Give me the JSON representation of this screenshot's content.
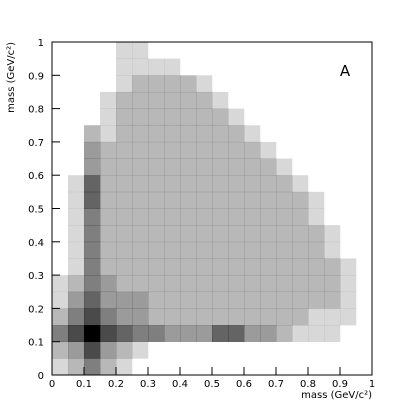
{
  "chart_data": {
    "type": "heatmap",
    "x_label": "mass (GeV/c²)",
    "y_label": "mass (GeV/c²)",
    "annotation": "A",
    "color": "#000000",
    "xlim": [
      0,
      1
    ],
    "ylim": [
      0,
      1
    ],
    "xticks": [
      0,
      0.1,
      0.2,
      0.3,
      0.4,
      0.5,
      0.6,
      0.7,
      0.8,
      0.9,
      1
    ],
    "yticks": [
      0,
      0.1,
      0.2,
      0.3,
      0.4,
      0.5,
      0.6,
      0.7,
      0.8,
      0.9,
      1
    ],
    "xbins": [
      0,
      0.05,
      0.1,
      0.15,
      0.2,
      0.25,
      0.3,
      0.35,
      0.4,
      0.45,
      0.5,
      0.55,
      0.6,
      0.65,
      0.7,
      0.75,
      0.8,
      0.85,
      0.9,
      0.95,
      1
    ],
    "ybins": [
      0,
      0.05,
      0.1,
      0.15,
      0.2,
      0.25,
      0.3,
      0.35,
      0.4,
      0.45,
      0.5,
      0.55,
      0.6,
      0.65,
      0.7,
      0.75,
      0.8,
      0.85,
      0.9,
      0.95,
      1
    ],
    "values": [
      [
        1,
        2,
        4,
        2,
        1,
        0,
        0,
        0,
        0,
        0,
        0,
        0,
        0,
        0,
        0,
        0,
        0,
        0,
        0,
        0
      ],
      [
        2,
        3,
        6,
        3,
        2,
        1,
        0,
        0,
        0,
        0,
        0,
        0,
        0,
        0,
        0,
        0,
        0,
        0,
        0,
        0
      ],
      [
        4,
        6,
        9,
        6,
        5,
        4,
        4,
        3,
        3,
        3,
        5,
        5,
        3,
        3,
        2,
        1,
        1,
        1,
        0,
        0
      ],
      [
        2,
        4,
        6,
        4,
        3,
        3,
        2,
        2,
        2,
        2,
        2,
        2,
        2,
        2,
        2,
        2,
        1,
        1,
        1,
        0
      ],
      [
        1,
        3,
        5,
        3,
        3,
        3,
        2,
        2,
        2,
        2,
        2,
        2,
        2,
        2,
        2,
        2,
        2,
        2,
        1,
        0
      ],
      [
        1,
        2,
        4,
        3,
        2,
        2,
        2,
        2,
        2,
        2,
        2,
        2,
        2,
        2,
        2,
        2,
        2,
        2,
        1,
        0
      ],
      [
        0,
        1,
        4,
        2,
        2,
        2,
        2,
        2,
        2,
        2,
        2,
        2,
        2,
        2,
        2,
        2,
        2,
        2,
        1,
        0
      ],
      [
        0,
        1,
        4,
        2,
        2,
        2,
        2,
        2,
        2,
        2,
        2,
        2,
        2,
        2,
        2,
        2,
        2,
        1,
        0,
        0
      ],
      [
        0,
        1,
        4,
        2,
        2,
        2,
        2,
        2,
        2,
        2,
        2,
        2,
        2,
        2,
        2,
        2,
        2,
        1,
        0,
        0
      ],
      [
        0,
        1,
        4,
        2,
        2,
        2,
        2,
        2,
        2,
        2,
        2,
        2,
        2,
        2,
        2,
        2,
        1,
        0,
        0,
        0
      ],
      [
        0,
        1,
        5,
        2,
        2,
        2,
        2,
        2,
        2,
        2,
        2,
        2,
        2,
        2,
        2,
        2,
        1,
        0,
        0,
        0
      ],
      [
        0,
        1,
        5,
        2,
        2,
        2,
        2,
        2,
        2,
        2,
        2,
        2,
        2,
        2,
        2,
        1,
        0,
        0,
        0,
        0
      ],
      [
        0,
        0,
        3,
        2,
        2,
        2,
        2,
        2,
        2,
        2,
        2,
        2,
        2,
        2,
        1,
        0,
        0,
        0,
        0,
        0
      ],
      [
        0,
        0,
        3,
        2,
        2,
        2,
        2,
        2,
        2,
        2,
        2,
        2,
        2,
        1,
        0,
        0,
        0,
        0,
        0,
        0
      ],
      [
        0,
        0,
        2,
        1,
        2,
        2,
        2,
        2,
        2,
        2,
        2,
        2,
        1,
        0,
        0,
        0,
        0,
        0,
        0,
        0
      ],
      [
        0,
        0,
        0,
        1,
        2,
        2,
        2,
        2,
        2,
        2,
        2,
        1,
        0,
        0,
        0,
        0,
        0,
        0,
        0,
        0
      ],
      [
        0,
        0,
        0,
        1,
        2,
        2,
        2,
        2,
        2,
        2,
        1,
        0,
        0,
        0,
        0,
        0,
        0,
        0,
        0,
        0
      ],
      [
        0,
        0,
        0,
        0,
        1,
        2,
        2,
        2,
        2,
        1,
        0,
        0,
        0,
        0,
        0,
        0,
        0,
        0,
        0,
        0
      ],
      [
        0,
        0,
        0,
        0,
        1,
        1,
        1,
        1,
        0,
        0,
        0,
        0,
        0,
        0,
        0,
        0,
        0,
        0,
        0,
        0
      ],
      [
        0,
        0,
        0,
        0,
        1,
        1,
        0,
        0,
        0,
        0,
        0,
        0,
        0,
        0,
        0,
        0,
        0,
        0,
        0,
        0
      ]
    ]
  }
}
